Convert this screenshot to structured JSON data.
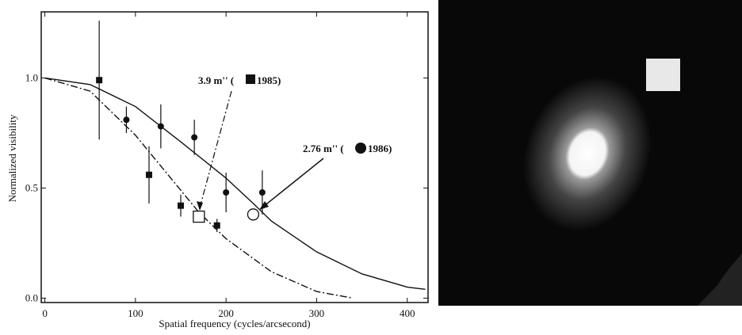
{
  "chart_data": {
    "type": "scatter",
    "xlabel": "Spatial frequency (cycles/arcsecond)",
    "ylabel": "Normalized visibility",
    "xlim": [
      -4,
      423
    ],
    "ylim": [
      -0.02,
      1.3
    ],
    "xticks": [
      0,
      100,
      200,
      300,
      400
    ],
    "yticks": [
      {
        "value": 0,
        "label": "0.0"
      },
      {
        "value": 0.5,
        "label": "0.5"
      },
      {
        "value": 1,
        "label": "1.0"
      }
    ],
    "series": [
      {
        "marker": "square",
        "color": "#111111",
        "x": [
          60,
          115,
          150,
          190
        ],
        "values": [
          0.99,
          0.56,
          0.42,
          0.33
        ],
        "errors": [
          0.27,
          0.13,
          0.05,
          0.03
        ]
      },
      {
        "marker": "circle",
        "color": "#111111",
        "x": [
          90,
          128,
          165,
          200,
          240
        ],
        "values": [
          0.81,
          0.78,
          0.73,
          0.48,
          0.48
        ],
        "errors": [
          0.06,
          0.1,
          0.08,
          0.09,
          0.1
        ]
      }
    ],
    "fits": [
      {
        "marker": "square",
        "x": 170,
        "value": 0.37
      },
      {
        "marker": "circle",
        "x": 230,
        "value": 0.38
      }
    ],
    "curves": [
      {
        "style": "solid",
        "x": [
          0,
          50,
          100,
          150,
          200,
          230,
          250,
          300,
          350,
          400,
          420
        ],
        "values": [
          1.0,
          0.97,
          0.87,
          0.71,
          0.545,
          0.43,
          0.35,
          0.21,
          0.11,
          0.05,
          0.04
        ]
      },
      {
        "style": "dashdot",
        "x": [
          0,
          50,
          100,
          150,
          170,
          200,
          250,
          300,
          340
        ],
        "values": [
          1.0,
          0.94,
          0.74,
          0.49,
          0.39,
          0.27,
          0.12,
          0.03,
          0.0
        ]
      }
    ],
    "annotations": [
      {
        "text": "3.9 m'' (",
        "year": "1985)"
      },
      {
        "text": "2.76 m'' (",
        "year": "1986)"
      }
    ]
  }
}
